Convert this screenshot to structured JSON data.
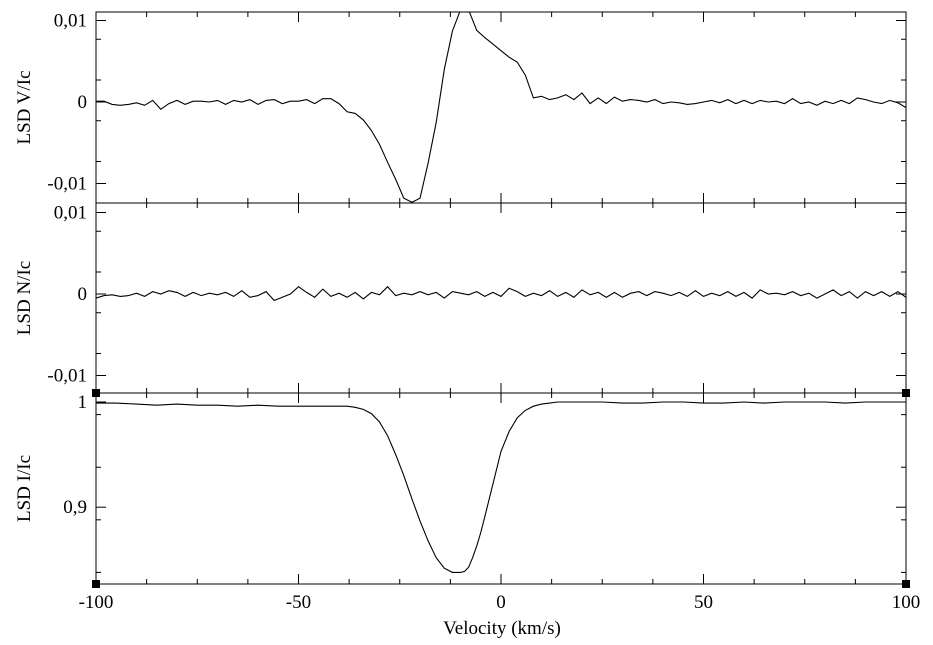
{
  "chart_data": [
    {
      "type": "line",
      "panel": "top",
      "ylabel": "LSD V/Ic",
      "yticks": [
        {
          "value": 0.01,
          "label": "0,01"
        },
        {
          "value": 0,
          "label": "0"
        },
        {
          "value": -0.01,
          "label": "-0,01"
        }
      ],
      "ylim": [
        -0.0123,
        0.0113
      ],
      "xlim": [
        -100,
        100
      ],
      "grid": false,
      "series": [
        {
          "x": [
            -100,
            -98,
            -96,
            -94,
            -92,
            -90,
            -88,
            -86,
            -84,
            -82,
            -80,
            -78,
            -76,
            -74,
            -72,
            -70,
            -68,
            -66,
            -64,
            -62,
            -60,
            -58,
            -56,
            -54,
            -52,
            -50,
            -48,
            -46,
            -44,
            -42,
            -40,
            -38,
            -36,
            -34,
            -32,
            -30,
            -28,
            -26,
            -24,
            -22,
            -20,
            -18,
            -16,
            -14,
            -12,
            -10,
            -8,
            -6,
            -4,
            -2,
            0,
            2,
            4,
            6,
            8,
            10,
            12,
            14,
            16,
            18,
            20,
            22,
            24,
            26,
            28,
            30,
            32,
            34,
            36,
            38,
            40,
            42,
            44,
            46,
            48,
            50,
            52,
            54,
            56,
            58,
            60,
            62,
            64,
            66,
            68,
            70,
            72,
            74,
            76,
            78,
            80,
            82,
            84,
            86,
            88,
            90,
            92,
            94,
            96,
            98,
            100
          ],
          "values": [
            0.0001,
            0.0001,
            -0.0003,
            -0.0004,
            -0.0003,
            -0.0001,
            -0.0004,
            0.0002,
            -0.0009,
            -0.0002,
            0.0002,
            -0.0003,
            0.0001,
            0.0001,
            0.0,
            0.0002,
            -0.0003,
            0.0002,
            0.0,
            0.0003,
            -0.0003,
            0.0002,
            0.0003,
            -0.0002,
            0.0001,
            0.0001,
            0.0003,
            -0.0002,
            0.0004,
            0.0004,
            -0.0002,
            -0.0012,
            -0.0014,
            -0.0022,
            -0.0035,
            -0.0052,
            -0.0074,
            -0.0095,
            -0.0118,
            -0.0123,
            -0.0118,
            -0.0075,
            -0.0025,
            0.004,
            0.0087,
            0.0113,
            0.0113,
            0.0088,
            0.0079,
            0.0071,
            0.0063,
            0.0055,
            0.0049,
            0.0033,
            0.0005,
            0.0007,
            0.0003,
            0.0005,
            0.0009,
            0.0003,
            0.0011,
            -0.0002,
            0.0005,
            -0.0002,
            0.0006,
            0.0001,
            0.0003,
            0.0002,
            0.0,
            0.0003,
            -0.0002,
            0.0,
            -0.0001,
            -0.0003,
            -0.0002,
            0.0,
            0.0002,
            -0.0001,
            0.0003,
            -0.0002,
            0.0002,
            -0.0002,
            0.0002,
            0.0,
            0.0001,
            -0.0002,
            0.0004,
            -0.0002,
            0.0,
            -0.0004,
            0.0001,
            -0.0002,
            0.0002,
            -0.0002,
            0.0005,
            0.0003,
            0.0,
            -0.0002,
            0.0002,
            -0.0001,
            -0.0007
          ]
        }
      ]
    },
    {
      "type": "line",
      "panel": "middle",
      "ylabel": "LSD N/Ic",
      "yticks": [
        {
          "value": 0.01,
          "label": "0,01"
        },
        {
          "value": 0,
          "label": "0"
        },
        {
          "value": -0.01,
          "label": "-0,01"
        }
      ],
      "ylim": [
        -0.0123,
        0.0113
      ],
      "xlim": [
        -100,
        100
      ],
      "grid": false,
      "series": [
        {
          "x": [
            -100,
            -98,
            -96,
            -94,
            -92,
            -90,
            -88,
            -86,
            -84,
            -82,
            -80,
            -78,
            -76,
            -74,
            -72,
            -70,
            -68,
            -66,
            -64,
            -62,
            -60,
            -58,
            -56,
            -54,
            -52,
            -50,
            -48,
            -46,
            -44,
            -42,
            -40,
            -38,
            -36,
            -34,
            -32,
            -30,
            -28,
            -26,
            -24,
            -22,
            -20,
            -18,
            -16,
            -14,
            -12,
            -10,
            -8,
            -6,
            -4,
            -2,
            0,
            2,
            4,
            6,
            8,
            10,
            12,
            14,
            16,
            18,
            20,
            22,
            24,
            26,
            28,
            30,
            32,
            34,
            36,
            38,
            40,
            42,
            44,
            46,
            48,
            50,
            52,
            54,
            56,
            58,
            60,
            62,
            64,
            66,
            68,
            70,
            72,
            74,
            76,
            78,
            80,
            82,
            84,
            86,
            88,
            90,
            92,
            94,
            96,
            98,
            100
          ],
          "values": [
            -0.0005,
            -0.0002,
            -0.0001,
            -0.0003,
            -0.0002,
            0.0001,
            -0.0003,
            0.0003,
            0.0,
            0.0004,
            0.0002,
            -0.0003,
            0.0002,
            -0.0002,
            0.0001,
            -0.0001,
            0.0002,
            -0.0003,
            0.0004,
            -0.0004,
            -0.0002,
            0.0003,
            -0.0008,
            -0.0004,
            0.0,
            0.0009,
            0.0002,
            -0.0004,
            0.0006,
            -0.0003,
            0.0001,
            -0.0004,
            0.0002,
            -0.0006,
            0.0002,
            -0.0001,
            0.0009,
            -0.0002,
            0.0001,
            -0.0001,
            0.0003,
            -0.0001,
            0.0002,
            -0.0005,
            0.0003,
            0.0001,
            -0.0001,
            0.0003,
            -0.0003,
            0.0002,
            -0.0003,
            0.0007,
            0.0003,
            -0.0003,
            0.0001,
            -0.0002,
            0.0004,
            -0.0003,
            0.0002,
            -0.0004,
            0.0005,
            -0.0001,
            0.0002,
            -0.0004,
            0.0002,
            -0.0004,
            0.0001,
            0.0003,
            -0.0002,
            0.0003,
            0.0001,
            -0.0002,
            0.0002,
            -0.0003,
            0.0004,
            -0.0003,
            0.0001,
            -0.0002,
            0.0003,
            -0.0003,
            0.0002,
            -0.0005,
            0.0005,
            0.0,
            0.0001,
            -0.0001,
            0.0003,
            -0.0002,
            0.0001,
            -0.0005,
            0.0,
            0.0005,
            -0.0002,
            0.0003,
            -0.0005,
            0.0003,
            -0.0002,
            0.0003,
            -0.0003,
            0.0003,
            -0.0004
          ]
        }
      ]
    },
    {
      "type": "line",
      "panel": "bottom",
      "ylabel": "LSD I/Ic",
      "xlabel": "Velocity (km/s)",
      "yticks": [
        {
          "value": 1.0,
          "label": "1"
        },
        {
          "value": 0.9,
          "label": "0,9"
        }
      ],
      "xticks": [
        {
          "value": -100,
          "label": "-100"
        },
        {
          "value": -50,
          "label": "-50"
        },
        {
          "value": 0,
          "label": "0"
        },
        {
          "value": 50,
          "label": "50"
        },
        {
          "value": 100,
          "label": "100"
        }
      ],
      "ylim": [
        0.838,
        1.01
      ],
      "xlim": [
        -100,
        100
      ],
      "grid": false,
      "series": [
        {
          "x": [
            -100,
            -95,
            -90,
            -85,
            -80,
            -75,
            -70,
            -65,
            -60,
            -55,
            -50,
            -45,
            -40,
            -38,
            -36,
            -34,
            -32,
            -30,
            -28,
            -26,
            -24,
            -22,
            -20,
            -18,
            -16,
            -14,
            -12,
            -10,
            -9,
            -8,
            -7,
            -6,
            -5,
            -4,
            -2,
            0,
            2,
            4,
            6,
            8,
            10,
            12,
            14,
            16,
            20,
            25,
            30,
            35,
            40,
            45,
            50,
            55,
            60,
            65,
            70,
            75,
            80,
            85,
            90,
            95,
            100
          ],
          "values": [
            0.999,
            0.999,
            0.998,
            0.997,
            0.998,
            0.997,
            0.997,
            0.996,
            0.997,
            0.996,
            0.996,
            0.996,
            0.996,
            0.996,
            0.995,
            0.993,
            0.989,
            0.981,
            0.968,
            0.95,
            0.93,
            0.908,
            0.887,
            0.868,
            0.852,
            0.842,
            0.838,
            0.838,
            0.839,
            0.843,
            0.852,
            0.863,
            0.876,
            0.891,
            0.922,
            0.953,
            0.972,
            0.985,
            0.992,
            0.996,
            0.998,
            0.999,
            1.0,
            1.0,
            1.0,
            1.0,
            0.999,
            0.999,
            1.0,
            1.0,
            0.999,
            0.999,
            1.0,
            0.999,
            1.0,
            1.0,
            1.0,
            0.999,
            1.0,
            1.0,
            1.0
          ]
        }
      ]
    }
  ]
}
